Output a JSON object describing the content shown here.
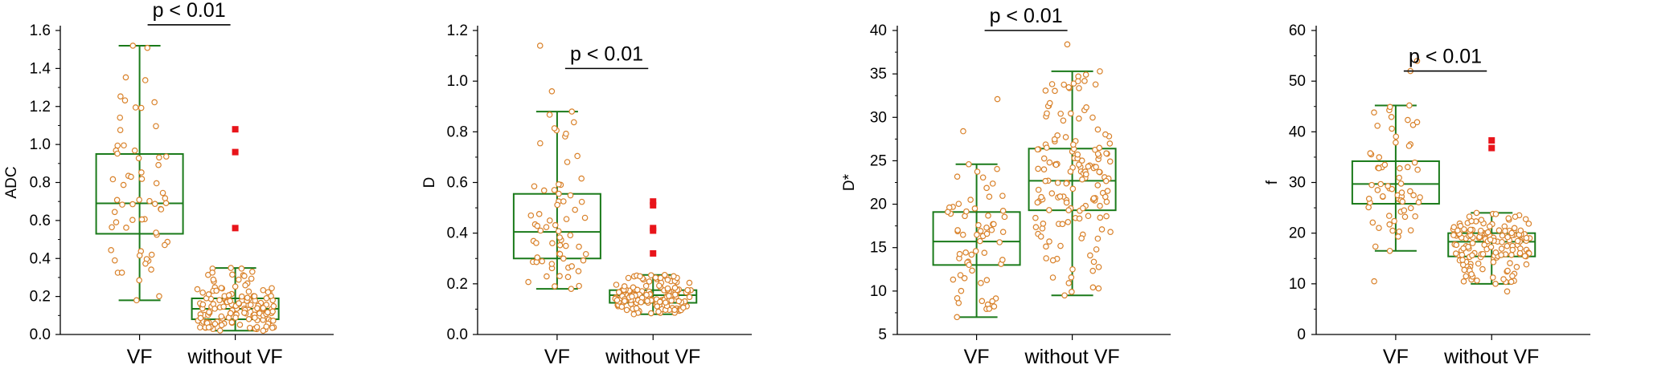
{
  "colors": {
    "box": "#1a7a1a",
    "point_stroke": "#d9822b",
    "point_fill": "#ffffff",
    "outlier": "#e8141a",
    "axis": "#000000"
  },
  "chart_data": [
    {
      "type": "box",
      "ylabel": "ADC",
      "categories": [
        "VF",
        "without VF"
      ],
      "ylim": [
        0,
        1.6
      ],
      "yticks": [
        0.0,
        0.2,
        0.4,
        0.6,
        0.8,
        1.0,
        1.2,
        1.4,
        1.6
      ],
      "tick_labels": [
        "0.0",
        "0.2",
        "0.4",
        "0.6",
        "0.8",
        "1.0",
        "1.2",
        "1.4",
        "1.6"
      ],
      "significance": {
        "text": "p < 0.01",
        "y": 1.63
      },
      "series": [
        {
          "whisker_low": 0.18,
          "q1": 0.53,
          "median": 0.69,
          "q3": 0.95,
          "whisker_high": 1.52,
          "outliers": [],
          "n": 62
        },
        {
          "whisker_low": 0.02,
          "q1": 0.08,
          "median": 0.135,
          "q3": 0.19,
          "whisker_high": 0.35,
          "outliers": [
            0.56,
            0.96,
            1.08
          ],
          "n": 150
        }
      ]
    },
    {
      "type": "box",
      "ylabel": "D",
      "categories": [
        "VF",
        "without VF"
      ],
      "ylim": [
        0,
        1.2
      ],
      "yticks": [
        0.0,
        0.2,
        0.4,
        0.6,
        0.8,
        1.0,
        1.2
      ],
      "tick_labels": [
        "0.0",
        "0.2",
        "0.4",
        "0.6",
        "0.8",
        "1.0",
        "1.2"
      ],
      "significance": {
        "text": "p < 0.01",
        "y": 1.05
      },
      "series": [
        {
          "whisker_low": 0.18,
          "q1": 0.3,
          "median": 0.405,
          "q3": 0.555,
          "whisker_high": 0.88,
          "outliers": [],
          "extra_points": [
            0.96,
            1.14
          ],
          "n": 62
        },
        {
          "whisker_low": 0.08,
          "q1": 0.125,
          "median": 0.155,
          "q3": 0.175,
          "whisker_high": 0.235,
          "outliers": [
            0.32,
            0.41,
            0.42,
            0.51,
            0.525
          ],
          "n": 150
        }
      ]
    },
    {
      "type": "box",
      "ylabel": "D*",
      "categories": [
        "VF",
        "without VF"
      ],
      "ylim": [
        5,
        40
      ],
      "yticks": [
        5,
        10,
        15,
        20,
        25,
        30,
        35,
        40
      ],
      "tick_labels": [
        "5",
        "10",
        "15",
        "20",
        "25",
        "30",
        "35",
        "40"
      ],
      "significance": {
        "text": "p < 0.01",
        "y": 40
      },
      "series": [
        {
          "whisker_low": 7,
          "q1": 13,
          "median": 15.7,
          "q3": 19.1,
          "whisker_high": 24.6,
          "outliers": [],
          "extra_points": [
            28.4,
            32.1
          ],
          "n": 62
        },
        {
          "whisker_low": 9.5,
          "q1": 19.3,
          "median": 22.7,
          "q3": 26.4,
          "whisker_high": 35.3,
          "outliers": [],
          "extra_points": [
            38.4
          ],
          "n": 150
        }
      ]
    },
    {
      "type": "box",
      "ylabel": "f",
      "categories": [
        "VF",
        "without VF"
      ],
      "ylim": [
        0,
        60
      ],
      "yticks": [
        0,
        10,
        20,
        30,
        40,
        50,
        60
      ],
      "tick_labels": [
        "0",
        "10",
        "20",
        "30",
        "40",
        "50",
        "60"
      ],
      "significance": {
        "text": "p < 0.01",
        "y": 52
      },
      "series": [
        {
          "whisker_low": 16.5,
          "q1": 25.8,
          "median": 29.7,
          "q3": 34.2,
          "whisker_high": 45.2,
          "outliers": [],
          "extra_points": [
            10.5,
            52,
            54
          ],
          "n": 62
        },
        {
          "whisker_low": 10,
          "q1": 15.4,
          "median": 18.3,
          "q3": 20,
          "whisker_high": 24,
          "outliers": [
            36.8,
            38.3
          ],
          "extra_points": [
            8.5
          ],
          "n": 150
        }
      ]
    }
  ]
}
